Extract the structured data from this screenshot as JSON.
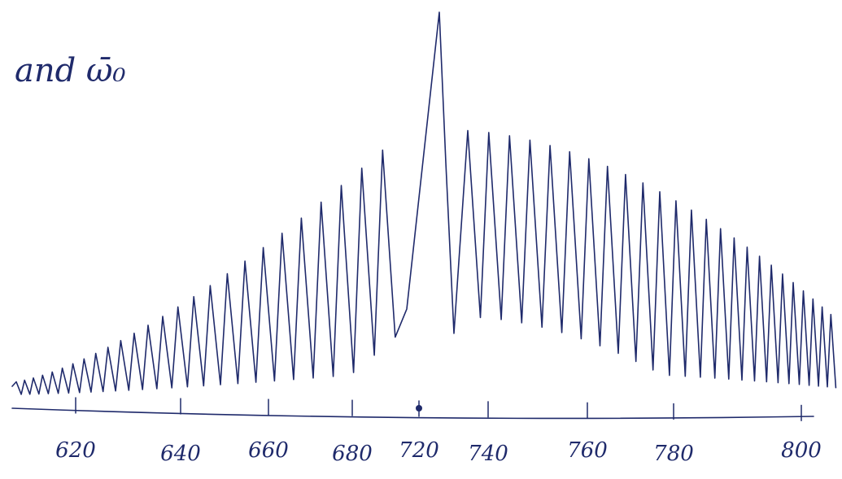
{
  "note": "and ω̄₀",
  "axis": {
    "tick_labels": [
      "620",
      "640",
      "660",
      "680",
      "720",
      "740",
      "760",
      "780",
      "800"
    ]
  }
}
